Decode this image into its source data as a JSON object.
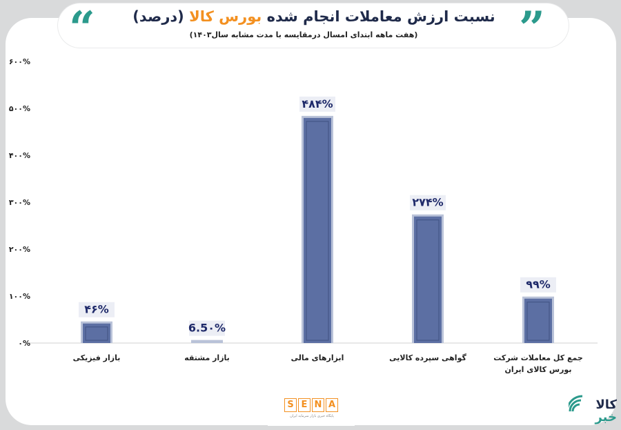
{
  "header": {
    "title_main": "نسبت ارزش معاملات انجام شده",
    "title_highlight": "بورس کالا",
    "title_suffix": "(درصد)",
    "subtitle": "(هفت ماهه ابتدای امسال درمقایسه با مدت مشابه سال۱۴۰۳)"
  },
  "colors": {
    "accent_orange": "#f39020",
    "accent_teal": "#2b9a8c",
    "bar_fill": "#5c6fa3",
    "bar_border": "#b9c2d8",
    "label_color": "#1f2a6a"
  },
  "chart_data": {
    "type": "bar",
    "categories": [
      "بازار فیزیکی",
      "بازار مشتقه",
      "ابزارهای مالی",
      "گواهی سپرده کالایی",
      "جمع کل معاملات شرکت بورس کالای ایران"
    ],
    "values": [
      46,
      6.5,
      484,
      274,
      99
    ],
    "data_labels": [
      "۴۶%",
      "6.5۰%",
      "۴۸۴%",
      "۲۷۴%",
      "۹۹%"
    ],
    "y_tick_labels": [
      "۰%",
      "۱۰۰%",
      "۲۰۰%",
      "۳۰۰%",
      "۴۰۰%",
      "۵۰۰%",
      "۶۰۰%"
    ],
    "y_ticks": [
      0,
      100,
      200,
      300,
      400,
      500,
      600
    ],
    "ylim": [
      0,
      600
    ],
    "grid": false,
    "legend": "none"
  },
  "footer": {
    "logo_letters": [
      "S",
      "E",
      "N",
      "A"
    ],
    "logo_sub": "پایگاه خبری بازار سرمایه ایران",
    "brand_line1": "کالا",
    "brand_line2": "خبر"
  }
}
